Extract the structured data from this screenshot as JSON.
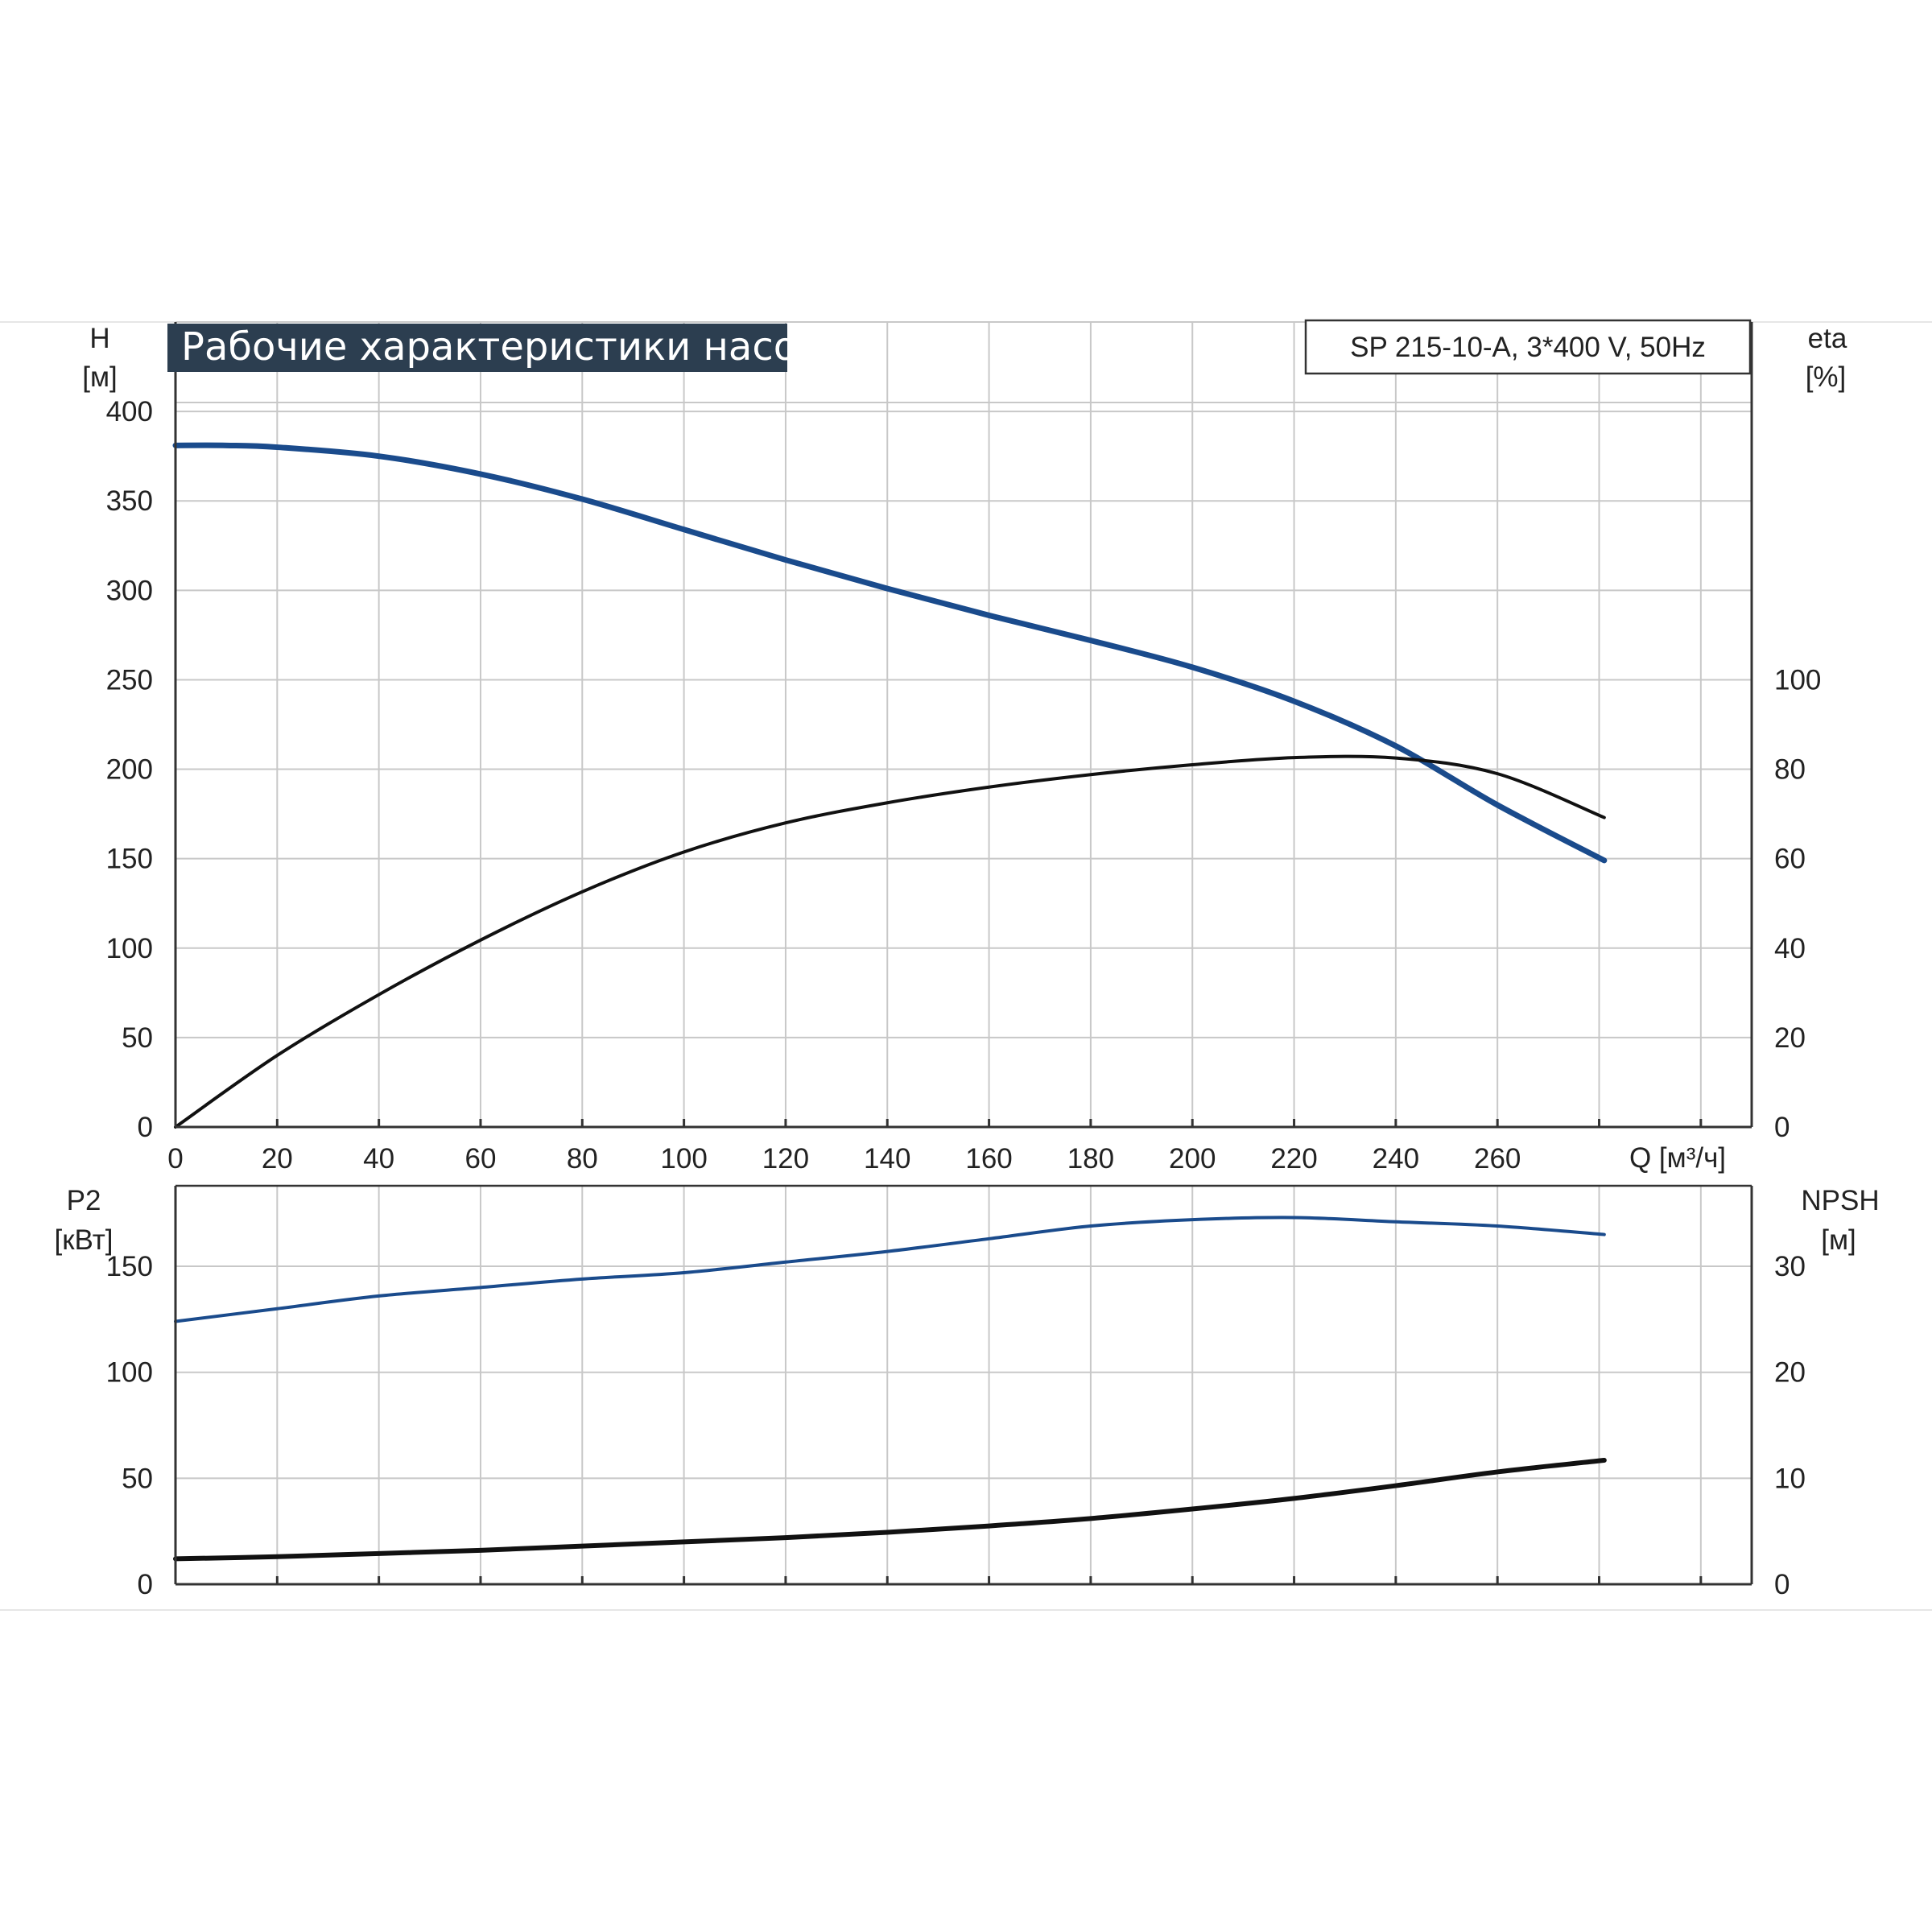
{
  "title": "Рабочие характеристики насоса",
  "model": "SP 215-10-A, 3*400 V, 50Hz",
  "colors": {
    "title_bg": "#2c3e50",
    "grid": "#c8c8c8",
    "frame": "#333333",
    "blue": "#1a4b8c",
    "black": "#111111"
  },
  "axes": {
    "q_unit": "Q [м³/ч]",
    "h_name": "H",
    "h_unit": "[м]",
    "eta_name": "eta",
    "eta_unit": "[%]",
    "p2_name": "P2",
    "p2_unit": "[кВт]",
    "npsh_name": "NPSH",
    "npsh_unit": "[м]"
  },
  "chart_data": [
    {
      "type": "line",
      "title": "Рабочие характеристики насоса",
      "xlabel": "Q [м³/ч]",
      "ylabel": "H [м]",
      "y2label": "eta [%]",
      "xlim": [
        0,
        310
      ],
      "ylim": [
        0,
        450
      ],
      "y2lim": [
        0,
        180
      ],
      "x_ticks": [
        0,
        20,
        40,
        60,
        80,
        100,
        120,
        140,
        160,
        180,
        200,
        220,
        240,
        260
      ],
      "y_ticks": [
        0,
        50,
        100,
        150,
        200,
        250,
        300,
        350,
        400
      ],
      "y2_ticks": [
        0,
        20,
        40,
        60,
        80,
        100
      ],
      "grid": true,
      "series": [
        {
          "name": "H",
          "axis": "left",
          "color": "#1a4b8c",
          "x": [
            0,
            10,
            20,
            40,
            60,
            80,
            100,
            120,
            140,
            160,
            180,
            200,
            220,
            240,
            260,
            281
          ],
          "y": [
            381,
            381,
            380,
            375,
            365,
            351,
            334,
            317,
            301,
            286,
            272,
            257,
            238,
            213,
            180,
            149
          ]
        },
        {
          "name": "eta",
          "axis": "right",
          "color": "#111111",
          "x": [
            0,
            20,
            40,
            60,
            80,
            100,
            120,
            140,
            160,
            180,
            200,
            220,
            240,
            260,
            281
          ],
          "y": [
            0,
            16,
            29.6,
            41.8,
            52.6,
            61.5,
            68,
            72.5,
            76,
            78.8,
            81,
            82.6,
            82.5,
            79,
            69.2
          ]
        }
      ]
    },
    {
      "type": "line",
      "xlabel": "Q [м³/ч]",
      "ylabel": "P2 [кВт]",
      "y2label": "NPSH [м]",
      "xlim": [
        0,
        310
      ],
      "ylim": [
        0,
        188
      ],
      "y2lim": [
        0,
        37.6
      ],
      "x_ticks": [
        0,
        20,
        40,
        60,
        80,
        100,
        120,
        140,
        160,
        180,
        200,
        220,
        240,
        260
      ],
      "y_ticks": [
        0,
        50,
        100,
        150
      ],
      "y2_ticks": [
        0,
        10,
        20,
        30
      ],
      "grid": true,
      "series": [
        {
          "name": "P2",
          "axis": "left",
          "color": "#1a4b8c",
          "x": [
            0,
            20,
            40,
            60,
            80,
            100,
            120,
            140,
            160,
            180,
            200,
            220,
            240,
            260,
            281
          ],
          "y": [
            124,
            130,
            136,
            140,
            144,
            147,
            152,
            157,
            163,
            169,
            172,
            173,
            171,
            169,
            165
          ]
        },
        {
          "name": "NPSH",
          "axis": "right",
          "color": "#111111",
          "x": [
            0,
            20,
            40,
            60,
            80,
            100,
            120,
            140,
            160,
            180,
            200,
            220,
            240,
            260,
            281
          ],
          "y": [
            2.4,
            2.6,
            2.9,
            3.2,
            3.6,
            4.0,
            4.4,
            4.9,
            5.5,
            6.2,
            7.1,
            8.1,
            9.3,
            10.6,
            11.7
          ]
        }
      ]
    }
  ]
}
